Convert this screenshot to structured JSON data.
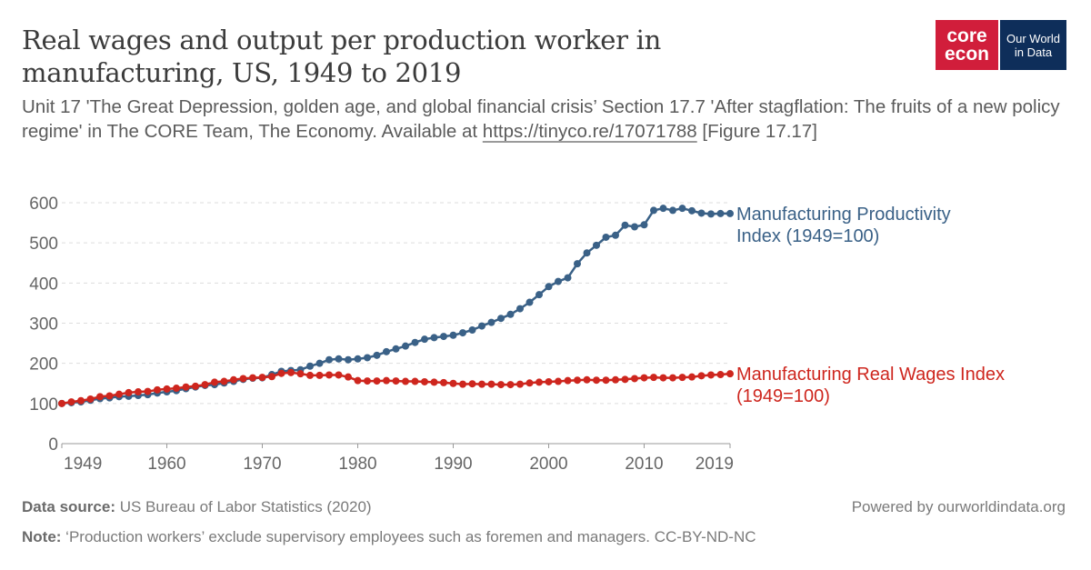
{
  "header": {
    "title": "Real wages and output per production worker in manufacturing, US, 1949 to 2019",
    "subtitle_text": "Unit 17 'The Great Depression, golden age, and global financial crisis’ Section 17.7 'After stagflation: The fruits of a new policy regime' in The CORE Team, The Economy. Available at ",
    "subtitle_link": "https://tinyco.re/17071788",
    "subtitle_tail": " [Figure 17.17]"
  },
  "logo": {
    "core_line1": "core",
    "core_line2": "econ",
    "owid_line1": "Our World",
    "owid_line2": "in Data"
  },
  "footer": {
    "source_label": "Data source:",
    "source_text": " US Bureau of Labor Statistics (2020)",
    "powered": "Powered by ourworldindata.org",
    "note_label": "Note:",
    "note_text": " ‘Production workers’ exclude supervisory employees such as foremen and managers. CC-BY-ND-NC"
  },
  "chart_data": {
    "type": "line",
    "xlim": [
      1949,
      2019
    ],
    "ylim": [
      0,
      600
    ],
    "x_ticks": [
      1949,
      1960,
      1970,
      1980,
      1990,
      2000,
      2010,
      2019
    ],
    "y_ticks": [
      0,
      100,
      200,
      300,
      400,
      500,
      600
    ],
    "grid": "horizontal dashed",
    "x": [
      1949,
      1950,
      1951,
      1952,
      1953,
      1954,
      1955,
      1956,
      1957,
      1958,
      1959,
      1960,
      1961,
      1962,
      1963,
      1964,
      1965,
      1966,
      1967,
      1968,
      1969,
      1970,
      1971,
      1972,
      1973,
      1974,
      1975,
      1976,
      1977,
      1978,
      1979,
      1980,
      1981,
      1982,
      1983,
      1984,
      1985,
      1986,
      1987,
      1988,
      1989,
      1990,
      1991,
      1992,
      1993,
      1994,
      1995,
      1996,
      1997,
      1998,
      1999,
      2000,
      2001,
      2002,
      2003,
      2004,
      2005,
      2006,
      2007,
      2008,
      2009,
      2010,
      2011,
      2012,
      2013,
      2014,
      2015,
      2016,
      2017,
      2018,
      2019
    ],
    "series": [
      {
        "name": "Manufacturing Productivity Index (1949=100)",
        "label_line1": "Manufacturing Productivity",
        "label_line2": "Index (1949=100)",
        "color": "#3a6187",
        "values": [
          100,
          102,
          104,
          108,
          112,
          114,
          117,
          118,
          120,
          122,
          126,
          129,
          132,
          137,
          141,
          145,
          147,
          151,
          155,
          160,
          163,
          164,
          172,
          180,
          182,
          184,
          193,
          200,
          209,
          211,
          209,
          211,
          214,
          220,
          229,
          236,
          243,
          252,
          260,
          264,
          267,
          270,
          276,
          283,
          293,
          302,
          312,
          322,
          336,
          352,
          371,
          391,
          404,
          413,
          448,
          475,
          494,
          514,
          519,
          544,
          540,
          545,
          581,
          586,
          581,
          586,
          580,
          574,
          572,
          573,
          573
        ]
      },
      {
        "name": "Manufacturing Real Wages Index (1949=100)",
        "label_line1": "Manufacturing Real Wages Index",
        "label_line2": "(1949=100)",
        "color": "#ce261e",
        "values": [
          100,
          104,
          107,
          111,
          117,
          119,
          123,
          127,
          129,
          130,
          134,
          136,
          138,
          141,
          143,
          147,
          153,
          155,
          159,
          162,
          164,
          165,
          167,
          175,
          177,
          174,
          170,
          170,
          171,
          171,
          166,
          157,
          156,
          156,
          157,
          156,
          155,
          155,
          154,
          153,
          152,
          150,
          148,
          149,
          148,
          148,
          147,
          147,
          148,
          151,
          153,
          154,
          155,
          157,
          158,
          159,
          158,
          158,
          159,
          160,
          162,
          164,
          165,
          164,
          164,
          165,
          166,
          169,
          171,
          172,
          174
        ]
      }
    ]
  }
}
